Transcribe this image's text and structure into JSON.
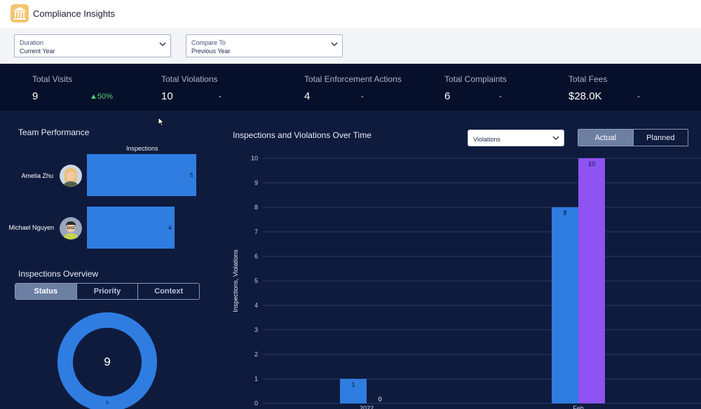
{
  "app": {
    "title": "Compliance Insights",
    "logo_icon": "bank-icon"
  },
  "filters": [
    {
      "label": "Duration",
      "value": "Current Year"
    },
    {
      "label": "Compare To",
      "value": "Previous Year"
    }
  ],
  "kpis": [
    {
      "label": "Total Visits",
      "value": "9",
      "change": "▲50%"
    },
    {
      "label": "Total Violations",
      "value": "10",
      "change": "-"
    },
    {
      "label": "Total Enforcement Actions",
      "value": "4",
      "change": "-"
    },
    {
      "label": "Total Complaints",
      "value": "6",
      "change": "-"
    },
    {
      "label": "Total Fees",
      "value": "$28.0K",
      "change": "-"
    }
  ],
  "team_performance": {
    "title": "Team Performance",
    "axis_label": "Inspections",
    "members": [
      {
        "name": "Amelia Zhu",
        "inspections": 5,
        "value_label": "5"
      },
      {
        "name": "Michael Nguyen",
        "inspections": 4,
        "value_label": "4"
      }
    ]
  },
  "inspections_overview": {
    "title": "Inspections Overview",
    "tabs": [
      "Status",
      "Priority",
      "Context"
    ],
    "active_tab": "Status",
    "total_label": "9",
    "segment_label": "9"
  },
  "main_chart": {
    "title": "Inspections and Violations Over Time",
    "dropdown_value": "Violations",
    "toggle": [
      "Actual",
      "Planned"
    ],
    "active_toggle": "Actual"
  },
  "colors": {
    "accent": "#2f7de1",
    "violations": "#8e53f2",
    "positive": "#50d27a"
  },
  "chart_data": {
    "type": "bar",
    "ylabel": "Inspections, Violations",
    "ylim": [
      0,
      10
    ],
    "yticks": [
      "0",
      "1",
      "2",
      "3",
      "4",
      "5",
      "6",
      "7",
      "8",
      "9",
      "10"
    ],
    "categories": [
      "2022",
      "Feb"
    ],
    "series": [
      {
        "values": [
          1,
          8
        ],
        "color": "#2f7de1"
      },
      {
        "values": [
          0,
          10
        ],
        "color": "#8e53f2"
      }
    ]
  }
}
